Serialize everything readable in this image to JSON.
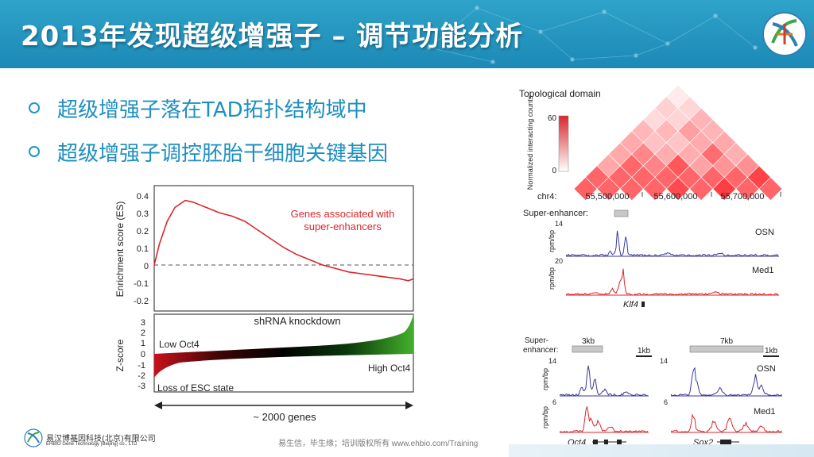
{
  "slide": {
    "title": "2013年发现超级增强子 – 调节功能分析",
    "bullets": [
      "超级增强子落在TAD拓扑结构域中",
      "超级增强子调控胚胎干细胞关键基因"
    ],
    "footer_company_cn": "易汉博基因科技(北京)有限公司",
    "footer_company_en": "EHBIO Gene Technology (Beijing) co., LTD",
    "footer_copyright": "易生信，毕生缘；培训版权所有 www.ehbio.com/Training",
    "colors": {
      "header": "#1c89b6",
      "bullet_text": "#1f8fc0",
      "accent_red": "#d9262b",
      "accent_blue": "#3a3a9a"
    }
  },
  "gsea": {
    "ylabel": "Enrichment score (ES)",
    "yticks": [
      "0.4",
      "0.3",
      "0.2",
      "0.1",
      "0",
      "-0.1",
      "-0.2"
    ],
    "annotation_line1": "Genes associated with",
    "annotation_line2": "super-enhancers",
    "shrna_label": "shRNA knockdown",
    "z_ylabel": "Z-score",
    "z_ticks": [
      "3",
      "2",
      "1",
      "0",
      "-1",
      "-2",
      "-3"
    ],
    "low_label": "Low Oct4",
    "high_label": "High Oct4",
    "loss_label": "Loss of ESC state",
    "genes_label": "~ 2000 genes"
  },
  "chart_data": {
    "type": "line",
    "ylabel": "Enrichment score (ES)",
    "ylim": [
      -0.2,
      0.4
    ],
    "x": [
      0,
      0.02,
      0.05,
      0.08,
      0.12,
      0.15,
      0.2,
      0.25,
      0.3,
      0.35,
      0.4,
      0.45,
      0.5,
      0.55,
      0.6,
      0.65,
      0.7,
      0.75,
      0.8,
      0.85,
      0.9,
      0.95,
      0.98,
      1.0
    ],
    "series": [
      {
        "name": "Genes associated with super-enhancers",
        "values": [
          0,
          0.12,
          0.25,
          0.33,
          0.37,
          0.36,
          0.33,
          0.3,
          0.28,
          0.25,
          0.2,
          0.15,
          0.1,
          0.06,
          0.03,
          0.0,
          -0.02,
          -0.04,
          -0.05,
          -0.06,
          -0.07,
          -0.08,
          -0.09,
          -0.08
        ]
      }
    ],
    "grid": false
  },
  "tad": {
    "title": "Topological domain",
    "legend_label": "Normalized interacting counts",
    "legend_max": "60",
    "legend_min": "0",
    "chr_label": "chr4:",
    "coords": [
      "55,500,000",
      "55,600,000",
      "55,700,000"
    ],
    "se_label": "Super-enhancer:",
    "axis_label": "rpm/bp",
    "osn_max": "14",
    "med1_max": "20",
    "track1": "OSN",
    "track2": "Med1",
    "gene": "Klf4"
  },
  "bottom_tracks": {
    "se_label_line1": "Super-",
    "se_label_line2": "enhancer:",
    "left_scale": "3kb",
    "left_bar": "1kb",
    "right_scale": "7kb",
    "right_bar": "1kb",
    "left_osn_max": "14",
    "left_med1_max": "6",
    "right_osn_max": "14",
    "right_med1_max": "6",
    "axis_label": "rpm/bp",
    "track1": "OSN",
    "track2": "Med1",
    "gene_left": "Oct4",
    "gene_right": "Sox2"
  }
}
